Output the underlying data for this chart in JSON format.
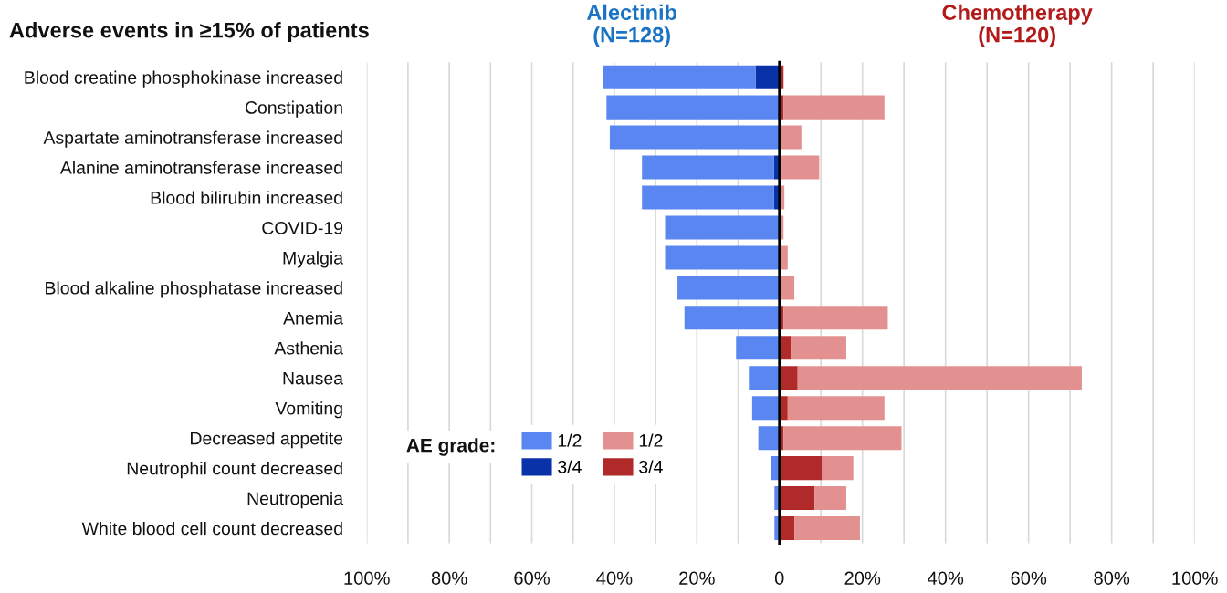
{
  "chart_data": [
    {
      "type": "bar",
      "orientation": "horizontal",
      "stacked": true,
      "title": "Alectinib\n(N=128)",
      "annotations": [
        "Adverse events in ≥15% of patients"
      ],
      "legend_title": "AE grade:",
      "legend": "bottom left",
      "categories": [
        "Blood creatine phosphokinase increased",
        "Constipation",
        "Aspartate aminotransferase increased",
        "Alanine aminotransferase increased",
        "Blood bilirubin increased",
        "COVID-19",
        "Myalgia",
        "Blood alkaline phosphatase increased",
        "Anemia",
        "Asthenia",
        "Nausea",
        "Vomiting",
        "Decreased appetite",
        "Neutrophil count decreased",
        "Neutropenia",
        "White blood cell count decreased"
      ],
      "series": [
        {
          "name": "3/4",
          "color": "#0a32a8",
          "values": [
            5.8,
            null,
            null,
            1.3,
            1.3,
            null,
            null,
            null,
            null,
            null,
            null,
            null,
            null,
            null,
            null,
            null
          ]
        },
        {
          "name": "1/2",
          "color": "#5a86f2",
          "values": [
            36.9,
            41.9,
            41.1,
            32.0,
            32.0,
            27.7,
            27.7,
            24.7,
            23.0,
            10.5,
            7.4,
            6.6,
            5.1,
            2.0,
            1.2,
            1.2
          ]
        }
      ],
      "xlim": [
        100,
        0
      ],
      "xticks": [
        {
          "value": 100,
          "label": "100%"
        },
        {
          "value": 90,
          "label": null
        },
        {
          "value": 80,
          "label": "80%"
        },
        {
          "value": 70,
          "label": null
        },
        {
          "value": 60,
          "label": "60%"
        },
        {
          "value": 50,
          "label": null
        },
        {
          "value": 40,
          "label": "40%"
        },
        {
          "value": 30,
          "label": null
        },
        {
          "value": 20,
          "label": "20%"
        },
        {
          "value": 10,
          "label": null
        },
        {
          "value": 0,
          "label": null
        }
      ],
      "grid": "x"
    },
    {
      "type": "bar",
      "orientation": "horizontal",
      "stacked": true,
      "title": "Chemotherapy\n(N=120)",
      "legend": "bottom left",
      "categories": [
        null,
        null,
        null,
        null,
        null,
        null,
        null,
        null,
        null,
        null,
        null,
        null,
        null,
        null,
        null,
        null
      ],
      "series": [
        {
          "name": "3/4",
          "color": "#b02a2a",
          "values": [
            1.0,
            1.0,
            null,
            null,
            null,
            null,
            null,
            null,
            1.0,
            2.8,
            4.4,
            2.0,
            1.0,
            10.3,
            8.5,
            3.6
          ]
        },
        {
          "name": "1/2",
          "color": "#e39090",
          "values": [
            null,
            24.3,
            5.3,
            9.6,
            1.2,
            1.0,
            2.0,
            3.6,
            25.1,
            13.3,
            68.4,
            23.3,
            28.4,
            7.5,
            7.6,
            15.8
          ]
        }
      ],
      "xlim": [
        0,
        100
      ],
      "xticks": [
        0,
        {
          "value": 10,
          "label": null
        },
        {
          "value": 20,
          "label": "20%"
        },
        {
          "value": 30,
          "label": null
        },
        {
          "value": 40,
          "label": "40%"
        },
        {
          "value": 50,
          "label": null
        },
        {
          "value": 60,
          "label": "60%"
        },
        {
          "value": 70,
          "label": null
        },
        {
          "value": 80,
          "label": "80%"
        },
        {
          "value": 90,
          "label": null
        },
        {
          "value": 100,
          "label": "100%"
        }
      ],
      "grid": "x"
    }
  ]
}
